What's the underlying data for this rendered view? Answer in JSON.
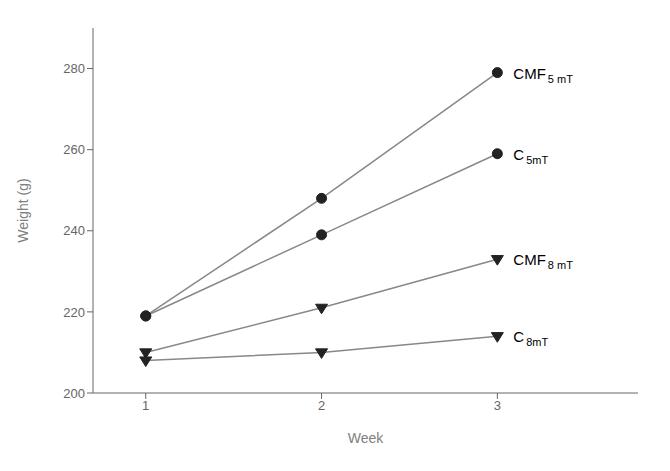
{
  "chart_data": {
    "type": "line",
    "xlabel": "Week",
    "ylabel": "Weight (g)",
    "x": [
      1,
      2,
      3
    ],
    "color": "#888888",
    "series": [
      {
        "label": "CMF",
        "label_sub": "5 mT",
        "values": [
          219,
          248,
          279
        ],
        "marker": "circle",
        "color": "#222222"
      },
      {
        "label": "C",
        "label_sub": "5mT",
        "values": [
          219,
          239,
          259
        ],
        "marker": "circle",
        "color": "#222222"
      },
      {
        "label": "CMF",
        "label_sub": "8 mT",
        "values": [
          210,
          221,
          233
        ],
        "marker": "triangle-down",
        "color": "#222222"
      },
      {
        "label": "C",
        "label_sub": "8mT",
        "values": [
          208,
          210,
          214
        ],
        "marker": "triangle-down",
        "color": "#222222"
      }
    ],
    "xlim": [
      0.7,
      3.8
    ],
    "ylim": [
      200,
      290
    ],
    "xticks": [
      1,
      2,
      3
    ],
    "yticks": [
      200,
      220,
      240,
      260,
      280
    ],
    "grid": false
  }
}
